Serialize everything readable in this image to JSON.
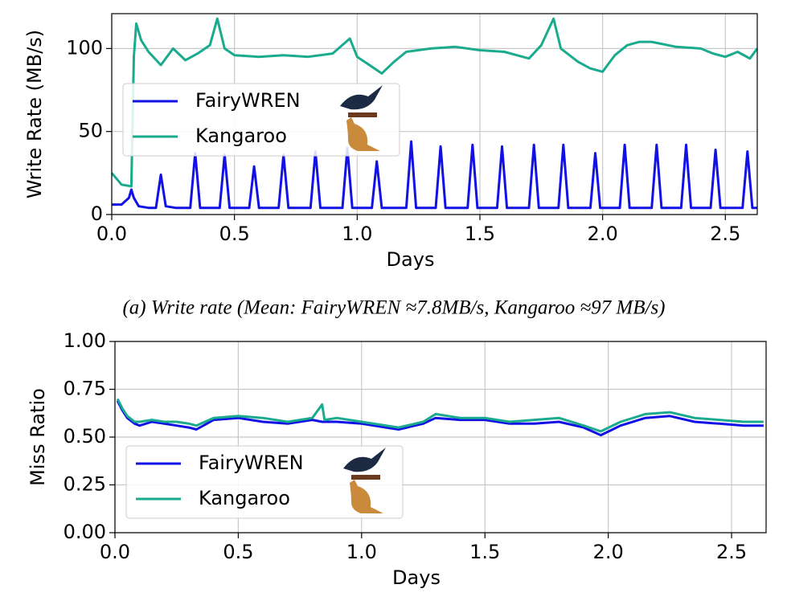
{
  "chart_data": [
    {
      "type": "line",
      "ylabel": "Write Rate (MB/s)",
      "xlabel": "Days",
      "caption": "(a) Write rate (Mean: FairyWREN ≈7.8MB/s, Kangaroo ≈97 MB/s)",
      "xlim": [
        0,
        2.63
      ],
      "ylim": [
        0,
        121
      ],
      "xticks": [
        {
          "value": 0,
          "label": "0.0"
        },
        0.5,
        {
          "value": 1,
          "label": "1.0"
        },
        1.5,
        {
          "value": 2,
          "label": "2.0"
        },
        2.5
      ],
      "yticks": [
        0,
        50,
        100
      ],
      "grid": true,
      "legend": "center left",
      "series": [
        {
          "name": "FairyWREN",
          "color": "#1111e6",
          "x": [
            0,
            0.04,
            0.07,
            0.08,
            0.09,
            0.11,
            0.15,
            0.18,
            0.2,
            0.22,
            0.26,
            0.32,
            0.34,
            0.36,
            0.4,
            0.44,
            0.46,
            0.48,
            0.52,
            0.56,
            0.58,
            0.6,
            0.64,
            0.68,
            0.7,
            0.72,
            0.77,
            0.81,
            0.83,
            0.85,
            0.9,
            0.94,
            0.96,
            0.98,
            1.02,
            1.06,
            1.08,
            1.1,
            1.15,
            1.2,
            1.22,
            1.24,
            1.29,
            1.32,
            1.34,
            1.36,
            1.41,
            1.45,
            1.47,
            1.49,
            1.54,
            1.57,
            1.59,
            1.61,
            1.66,
            1.7,
            1.72,
            1.74,
            1.79,
            1.82,
            1.84,
            1.86,
            1.91,
            1.95,
            1.97,
            1.99,
            2.03,
            2.07,
            2.09,
            2.11,
            2.16,
            2.2,
            2.22,
            2.24,
            2.29,
            2.32,
            2.34,
            2.36,
            2.41,
            2.44,
            2.46,
            2.48,
            2.53,
            2.57,
            2.59,
            2.61,
            2.63
          ],
          "values": [
            6,
            6,
            10,
            15,
            10,
            5,
            4,
            4,
            24,
            5,
            4,
            4,
            37,
            4,
            4,
            4,
            36,
            4,
            4,
            4,
            29,
            4,
            4,
            4,
            36,
            4,
            4,
            4,
            38,
            4,
            4,
            4,
            40,
            4,
            4,
            4,
            32,
            4,
            4,
            4,
            44,
            4,
            4,
            4,
            41,
            4,
            4,
            4,
            42,
            4,
            4,
            4,
            41,
            4,
            4,
            4,
            42,
            4,
            4,
            4,
            42,
            4,
            4,
            4,
            37,
            4,
            4,
            4,
            42,
            4,
            4,
            4,
            42,
            4,
            4,
            4,
            42,
            4,
            4,
            4,
            39,
            4,
            4,
            4,
            38,
            4,
            4
          ]
        },
        {
          "name": "Kangaroo",
          "color": "#1aab8f",
          "x": [
            0,
            0.04,
            0.08,
            0.09,
            0.1,
            0.12,
            0.15,
            0.2,
            0.25,
            0.3,
            0.35,
            0.4,
            0.43,
            0.46,
            0.5,
            0.6,
            0.7,
            0.8,
            0.9,
            0.97,
            1.0,
            1.05,
            1.1,
            1.15,
            1.2,
            1.3,
            1.4,
            1.5,
            1.6,
            1.65,
            1.7,
            1.75,
            1.8,
            1.83,
            1.9,
            1.95,
            2.0,
            2.05,
            2.1,
            2.15,
            2.2,
            2.3,
            2.4,
            2.45,
            2.5,
            2.55,
            2.6,
            2.63
          ],
          "values": [
            25,
            18,
            17,
            95,
            115,
            105,
            98,
            90,
            100,
            93,
            97,
            102,
            118,
            100,
            96,
            95,
            96,
            95,
            97,
            106,
            95,
            90,
            85,
            92,
            98,
            100,
            101,
            99,
            98,
            96,
            94,
            102,
            118,
            100,
            92,
            88,
            86,
            96,
            102,
            104,
            104,
            101,
            100,
            97,
            95,
            98,
            94,
            100
          ]
        }
      ]
    },
    {
      "type": "line",
      "ylabel": "Miss Ratio",
      "xlabel": "Days",
      "xlim": [
        0,
        2.64
      ],
      "ylim": [
        0,
        1
      ],
      "xticks": [
        {
          "value": 0,
          "label": "0.0"
        },
        0.5,
        {
          "value": 1,
          "label": "1.0"
        },
        1.5,
        {
          "value": 2,
          "label": "2.0"
        },
        2.5
      ],
      "yticks": [
        {
          "value": 0,
          "label": "0.00"
        },
        0.25,
        {
          "value": 0.5,
          "label": "0.50"
        },
        0.75,
        {
          "value": 1,
          "label": "1.00"
        }
      ],
      "grid": true,
      "legend": "lower left",
      "series": [
        {
          "name": "FairyWREN",
          "color": "#1111e6",
          "x": [
            0.01,
            0.03,
            0.05,
            0.08,
            0.1,
            0.15,
            0.2,
            0.25,
            0.3,
            0.33,
            0.4,
            0.5,
            0.6,
            0.7,
            0.8,
            0.84,
            0.85,
            0.9,
            1.0,
            1.1,
            1.15,
            1.25,
            1.3,
            1.4,
            1.5,
            1.6,
            1.7,
            1.8,
            1.9,
            1.97,
            2.05,
            2.15,
            2.25,
            2.35,
            2.45,
            2.55,
            2.63
          ],
          "values": [
            0.69,
            0.64,
            0.6,
            0.57,
            0.56,
            0.58,
            0.57,
            0.56,
            0.55,
            0.54,
            0.59,
            0.6,
            0.58,
            0.57,
            0.59,
            0.58,
            0.58,
            0.58,
            0.57,
            0.55,
            0.54,
            0.57,
            0.6,
            0.59,
            0.59,
            0.57,
            0.57,
            0.58,
            0.55,
            0.51,
            0.56,
            0.6,
            0.61,
            0.58,
            0.57,
            0.56,
            0.56
          ]
        },
        {
          "name": "Kangaroo",
          "color": "#1aab8f",
          "x": [
            0.01,
            0.03,
            0.05,
            0.08,
            0.1,
            0.15,
            0.2,
            0.25,
            0.3,
            0.33,
            0.4,
            0.5,
            0.6,
            0.7,
            0.8,
            0.84,
            0.85,
            0.9,
            1.0,
            1.1,
            1.15,
            1.25,
            1.3,
            1.4,
            1.5,
            1.6,
            1.7,
            1.8,
            1.9,
            1.97,
            2.05,
            2.15,
            2.25,
            2.35,
            2.45,
            2.55,
            2.63
          ],
          "values": [
            0.7,
            0.65,
            0.61,
            0.58,
            0.58,
            0.59,
            0.58,
            0.58,
            0.57,
            0.56,
            0.6,
            0.61,
            0.6,
            0.58,
            0.6,
            0.67,
            0.59,
            0.6,
            0.58,
            0.56,
            0.55,
            0.58,
            0.62,
            0.6,
            0.6,
            0.58,
            0.59,
            0.6,
            0.56,
            0.53,
            0.58,
            0.62,
            0.63,
            0.6,
            0.59,
            0.58,
            0.58
          ]
        }
      ]
    }
  ]
}
